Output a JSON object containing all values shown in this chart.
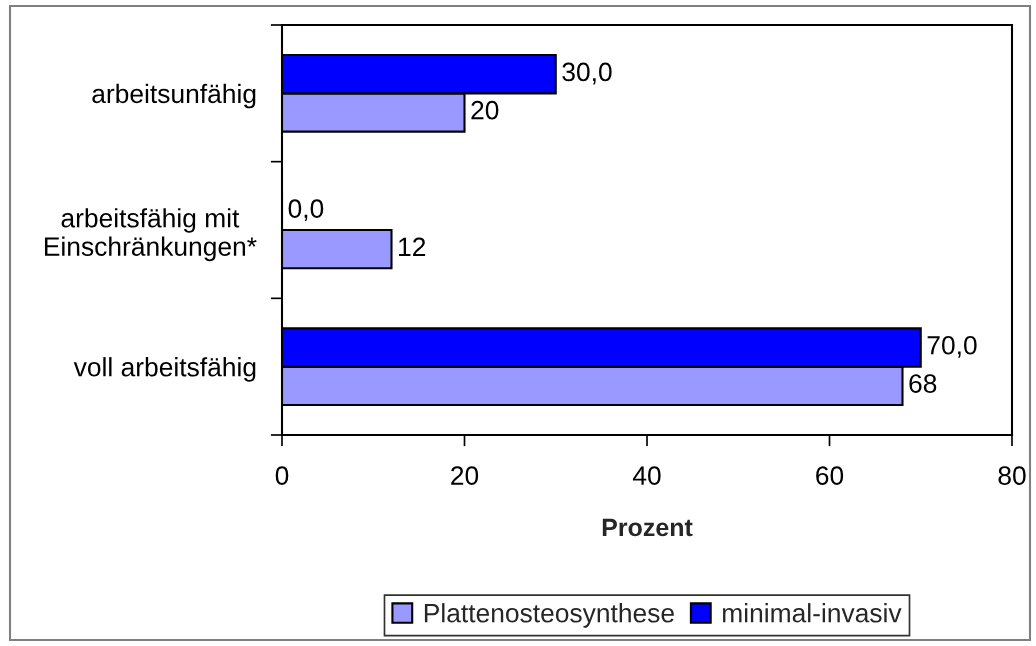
{
  "chart_data": {
    "type": "bar",
    "orientation": "horizontal",
    "xlabel": "Prozent",
    "categories": [
      "arbeitsunfähig",
      "arbeitsfähig mit\nEinschränkungen*",
      "voll arbeitsfähig"
    ],
    "series": [
      {
        "name": "Plattenosteosynthese",
        "color": "#9999ff",
        "values": [
          20,
          12,
          68
        ],
        "value_labels": [
          "20",
          "12",
          "68"
        ]
      },
      {
        "name": "minimal-invasiv",
        "color": "#0000ff",
        "values": [
          30,
          0,
          70
        ],
        "value_labels": [
          "30,0",
          "0,0",
          "70,0"
        ]
      }
    ],
    "xlim": [
      0,
      80
    ],
    "xticks": [
      0,
      20,
      40,
      60,
      80
    ],
    "legend": "bottom"
  }
}
